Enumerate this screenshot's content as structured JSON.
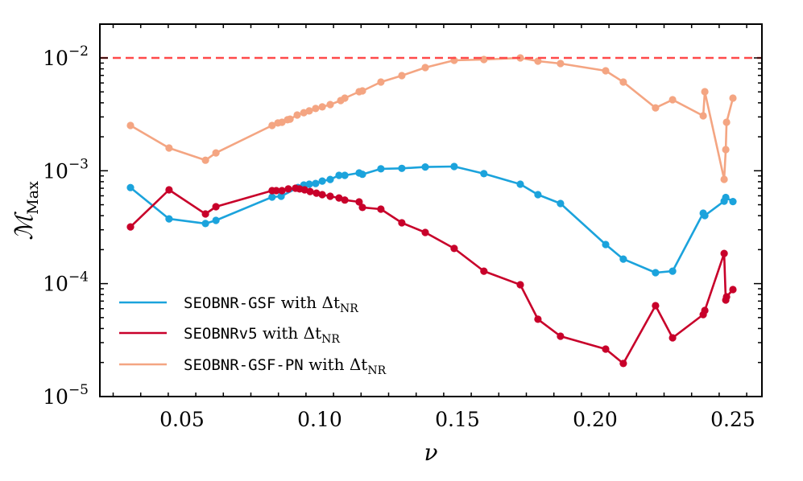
{
  "chart_data": {
    "type": "line",
    "title": "",
    "xlabel": "ν",
    "ylabel": "M_Max",
    "ylabel_main": "ℳ",
    "ylabel_sub": "Max",
    "xscale": "linear",
    "yscale": "log",
    "xlim": [
      0.0202,
      0.2605
    ],
    "ylim": [
      1e-05,
      0.0218
    ],
    "xticks": [
      0.05,
      0.1,
      0.15,
      0.2,
      0.25
    ],
    "xtick_labels": [
      "0.05",
      "0.10",
      "0.15",
      "0.20",
      "0.25"
    ],
    "yticks": [
      1e-05,
      0.0001,
      0.001,
      0.01
    ],
    "ytick_labels": [
      {
        "base": "10",
        "exp": "−5"
      },
      {
        "base": "10",
        "exp": "−4"
      },
      {
        "base": "10",
        "exp": "−3"
      },
      {
        "base": "10",
        "exp": "−2"
      }
    ],
    "grid": false,
    "legend_position": "lower left",
    "reference_line": {
      "y": 0.01,
      "style": "dashed",
      "color": "#ff4a4a"
    },
    "series": [
      {
        "name": "SEOBNR-GSF with Δt_NR",
        "legend_code": "SEOBNR-GSF",
        "legend_suffix": " with Δt",
        "legend_sub": "NR",
        "color": "#1ba3dc",
        "x": [
          0.0313,
          0.0453,
          0.0585,
          0.0623,
          0.0827,
          0.086,
          0.0921,
          0.0942,
          0.0962,
          0.0985,
          0.1009,
          0.1038,
          0.107,
          0.1091,
          0.1143,
          0.1155,
          0.1222,
          0.1298,
          0.1383,
          0.1488,
          0.1596,
          0.1728,
          0.1792,
          0.1874,
          0.2038,
          0.2102,
          0.2219,
          0.2281,
          0.2392,
          0.2398,
          0.2468,
          0.2474,
          0.25
        ],
        "y": [
          0.00071,
          0.000375,
          0.000341,
          0.000363,
          0.000585,
          0.000594,
          0.000711,
          0.000748,
          0.00076,
          0.000772,
          0.000811,
          0.000838,
          0.00091,
          0.00091,
          0.000957,
          0.00093,
          0.00104,
          0.00105,
          0.00108,
          0.00109,
          0.000942,
          0.00076,
          0.000614,
          0.000513,
          0.000222,
          0.000165,
          0.000125,
          0.000129,
          0.000421,
          0.000401,
          0.000538,
          0.00058,
          0.000533
        ]
      },
      {
        "name": "SEOBNRv5 with Δt_NR",
        "legend_code": "SEOBNRv5",
        "legend_suffix": " with Δt",
        "legend_sub": "NR",
        "color": "#c8002a",
        "x": [
          0.0313,
          0.0453,
          0.0585,
          0.0623,
          0.0827,
          0.0842,
          0.0863,
          0.0886,
          0.0912,
          0.0927,
          0.0945,
          0.0965,
          0.0988,
          0.1009,
          0.1038,
          0.107,
          0.1091,
          0.1143,
          0.1155,
          0.1222,
          0.1298,
          0.1383,
          0.1488,
          0.1596,
          0.1728,
          0.1792,
          0.1874,
          0.2038,
          0.2102,
          0.2219,
          0.2281,
          0.2392,
          0.2398,
          0.2468,
          0.2474,
          0.2477,
          0.25
        ],
        "y": [
          0.000318,
          0.000678,
          0.000414,
          0.00048,
          0.000667,
          0.000667,
          0.000667,
          0.00069,
          0.0007,
          0.00069,
          0.000678,
          0.000655,
          0.000634,
          0.000614,
          0.000594,
          0.000574,
          0.00055,
          0.00053,
          0.000473,
          0.000457,
          0.000346,
          0.000284,
          0.000205,
          0.000129,
          9.77e-05,
          4.83e-05,
          3.42e-05,
          2.63e-05,
          1.96e-05,
          6.38e-05,
          3.31e-05,
          5.32e-05,
          5.78e-05,
          0.000185,
          7.16e-05,
          7.64e-05,
          8.85e-05
        ]
      },
      {
        "name": "SEOBNR-GSF-PN with Δt_NR",
        "legend_code": "SEOBNR-GSF-PN",
        "legend_suffix": " with Δt",
        "legend_sub": "NR",
        "color": "#f4a582",
        "x": [
          0.0313,
          0.0453,
          0.0585,
          0.0623,
          0.0827,
          0.0848,
          0.0863,
          0.0883,
          0.0892,
          0.0918,
          0.0942,
          0.0962,
          0.0985,
          0.1009,
          0.1038,
          0.1076,
          0.1091,
          0.1143,
          0.1155,
          0.1222,
          0.1298,
          0.1383,
          0.1488,
          0.1596,
          0.1728,
          0.1792,
          0.1874,
          0.2038,
          0.2102,
          0.2219,
          0.2281,
          0.2392,
          0.2398,
          0.2468,
          0.2474,
          0.2477,
          0.25
        ],
        "y": [
          0.00252,
          0.00159,
          0.00124,
          0.00144,
          0.00252,
          0.00265,
          0.00269,
          0.00283,
          0.00287,
          0.00312,
          0.00327,
          0.00339,
          0.00356,
          0.00368,
          0.00386,
          0.00419,
          0.0044,
          0.00502,
          0.0051,
          0.00611,
          0.00697,
          0.00821,
          0.00952,
          0.00968,
          0.01,
          0.00936,
          0.00891,
          0.00769,
          0.00611,
          0.00361,
          0.00426,
          0.00307,
          0.00502,
          0.000839,
          0.00154,
          0.00269,
          0.0044
        ]
      }
    ]
  }
}
